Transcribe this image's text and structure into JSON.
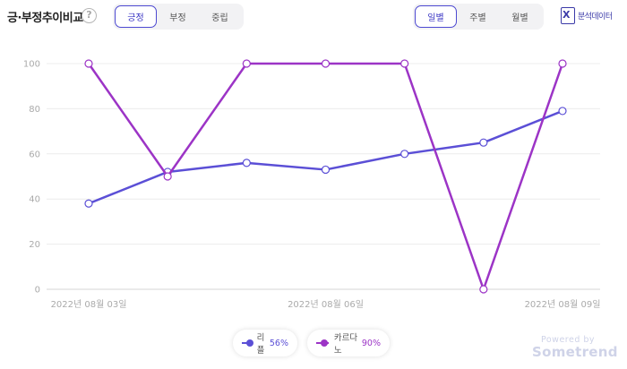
{
  "header": {
    "title": "긍·부정추이비교",
    "help_icon": "?",
    "sentiment_tabs": [
      {
        "label": "긍정",
        "active": true
      },
      {
        "label": "부정",
        "active": false
      },
      {
        "label": "중립",
        "active": false
      }
    ],
    "period_tabs": [
      {
        "label": "일별",
        "active": true
      },
      {
        "label": "주별",
        "active": false
      },
      {
        "label": "월별",
        "active": false
      }
    ],
    "excel_icon": "X",
    "excel_label": "분석데이터"
  },
  "colors": {
    "ripple": "#5b4fd6",
    "cardano": "#9c34c6",
    "accent": "#4d49d1"
  },
  "chart_data": {
    "type": "line",
    "x": [
      "2022-08-03",
      "2022-08-04",
      "2022-08-05",
      "2022-08-06",
      "2022-08-07",
      "2022-08-08",
      "2022-08-09"
    ],
    "x_tick_labels": [
      "2022년 08월 03일",
      "2022년 08월 06일",
      "2022년 08월 09일"
    ],
    "x_tick_indices": [
      0,
      3,
      6
    ],
    "y_ticks": [
      0,
      20,
      40,
      60,
      80,
      100
    ],
    "ylim": [
      0,
      100
    ],
    "grid": true,
    "series": [
      {
        "name": "리플",
        "summary": "56%",
        "color": "#5b4fd6",
        "values": [
          38,
          52,
          56,
          53,
          60,
          65,
          79
        ]
      },
      {
        "name": "카르다노",
        "summary": "90%",
        "color": "#9c34c6",
        "values": [
          100,
          50,
          100,
          100,
          100,
          0,
          100
        ]
      }
    ]
  },
  "footer": {
    "powered_by": "Powered by",
    "brand": "Sometrend"
  }
}
